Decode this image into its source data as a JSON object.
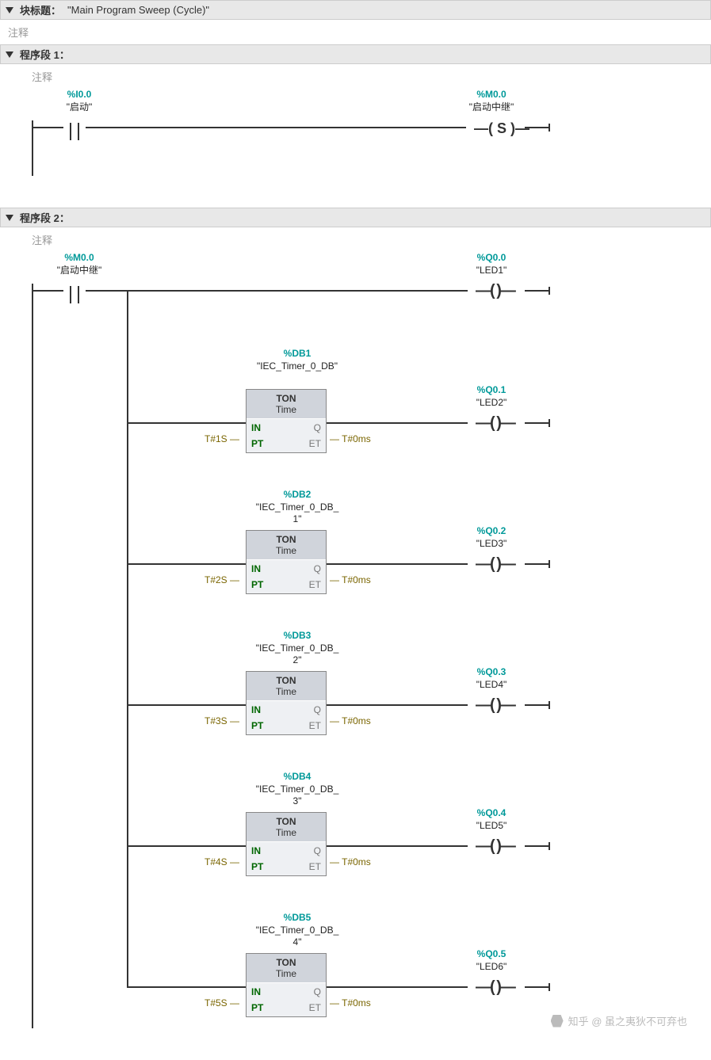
{
  "palette": {
    "teal": "#009999",
    "wire": "#333333",
    "boxbg": "#d0d4db",
    "boxinner": "#eef0f3",
    "ptcolor": "#7a6500",
    "commentcolor": "#999999",
    "hdrbg": "#e8e8e8"
  },
  "title": {
    "label": "块标题：",
    "value": "\"Main Program Sweep (Cycle)\""
  },
  "commentLabel": "注释",
  "network1": {
    "header": "程序段 1：",
    "comment": "注释",
    "contact": {
      "addr": "%I0.0",
      "name": "\"启动\""
    },
    "coil": {
      "addr": "%M0.0",
      "name": "\"启动中继\"",
      "type": "S"
    }
  },
  "network2": {
    "header": "程序段 2：",
    "comment": "注释",
    "contact": {
      "addr": "%M0.0",
      "name": "\"启动中继\""
    },
    "branches": [
      {
        "output": {
          "addr": "%Q0.0",
          "name": "\"LED1\""
        }
      },
      {
        "db": {
          "addr": "%DB1",
          "name": "\"IEC_Timer_0_DB\""
        },
        "block": {
          "type": "TON",
          "sub": "Time",
          "in": "IN",
          "q": "Q",
          "pt": "PT",
          "et": "ET",
          "ptval": "T#1S",
          "etval": "T#0ms"
        },
        "output": {
          "addr": "%Q0.1",
          "name": "\"LED2\""
        }
      },
      {
        "db": {
          "addr": "%DB2",
          "name": "\"IEC_Timer_0_DB_1\""
        },
        "block": {
          "type": "TON",
          "sub": "Time",
          "in": "IN",
          "q": "Q",
          "pt": "PT",
          "et": "ET",
          "ptval": "T#2S",
          "etval": "T#0ms"
        },
        "output": {
          "addr": "%Q0.2",
          "name": "\"LED3\""
        }
      },
      {
        "db": {
          "addr": "%DB3",
          "name": "\"IEC_Timer_0_DB_2\""
        },
        "block": {
          "type": "TON",
          "sub": "Time",
          "in": "IN",
          "q": "Q",
          "pt": "PT",
          "et": "ET",
          "ptval": "T#3S",
          "etval": "T#0ms"
        },
        "output": {
          "addr": "%Q0.3",
          "name": "\"LED4\""
        }
      },
      {
        "db": {
          "addr": "%DB4",
          "name": "\"IEC_Timer_0_DB_3\""
        },
        "block": {
          "type": "TON",
          "sub": "Time",
          "in": "IN",
          "q": "Q",
          "pt": "PT",
          "et": "ET",
          "ptval": "T#4S",
          "etval": "T#0ms"
        },
        "output": {
          "addr": "%Q0.4",
          "name": "\"LED5\""
        }
      },
      {
        "db": {
          "addr": "%DB5",
          "name": "\"IEC_Timer_0_DB_4\""
        },
        "block": {
          "type": "TON",
          "sub": "Time",
          "in": "IN",
          "q": "Q",
          "pt": "PT",
          "et": "ET",
          "ptval": "T#5S",
          "etval": "T#0ms"
        },
        "output": {
          "addr": "%Q0.5",
          "name": "\"LED6\""
        }
      }
    ]
  },
  "watermark": "知乎 @ 虽之夷狄不可弃也"
}
